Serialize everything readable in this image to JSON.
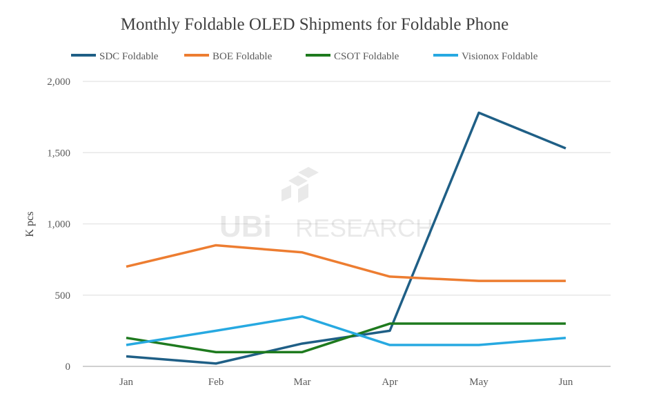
{
  "chart_data": {
    "type": "line",
    "title": "Monthly Foldable OLED Shipments for Foldable Phone",
    "xlabel": "",
    "ylabel": "K pcs",
    "categories": [
      "Jan",
      "Feb",
      "Mar",
      "Apr",
      "May",
      "Jun"
    ],
    "ylim": [
      0,
      2000
    ],
    "yticks": [
      0,
      500,
      1000,
      1500,
      2000
    ],
    "ytick_labels": [
      "0",
      "500",
      "1,000",
      "1,500",
      "2,000"
    ],
    "grid": true,
    "legend_position": "top",
    "series": [
      {
        "name": "SDC Foldable",
        "color": "#1f5f86",
        "values": [
          70,
          20,
          160,
          250,
          1780,
          1530
        ]
      },
      {
        "name": "BOE Foldable",
        "color": "#ed7d31",
        "values": [
          700,
          850,
          800,
          630,
          600,
          600
        ]
      },
      {
        "name": "CSOT Foldable",
        "color": "#1e7a1e",
        "values": [
          200,
          100,
          100,
          300,
          300,
          300
        ]
      },
      {
        "name": "Visionox Foldable",
        "color": "#27a9e1",
        "values": [
          150,
          250,
          350,
          150,
          150,
          200
        ]
      }
    ],
    "watermark": "UBI RESEARCH"
  }
}
